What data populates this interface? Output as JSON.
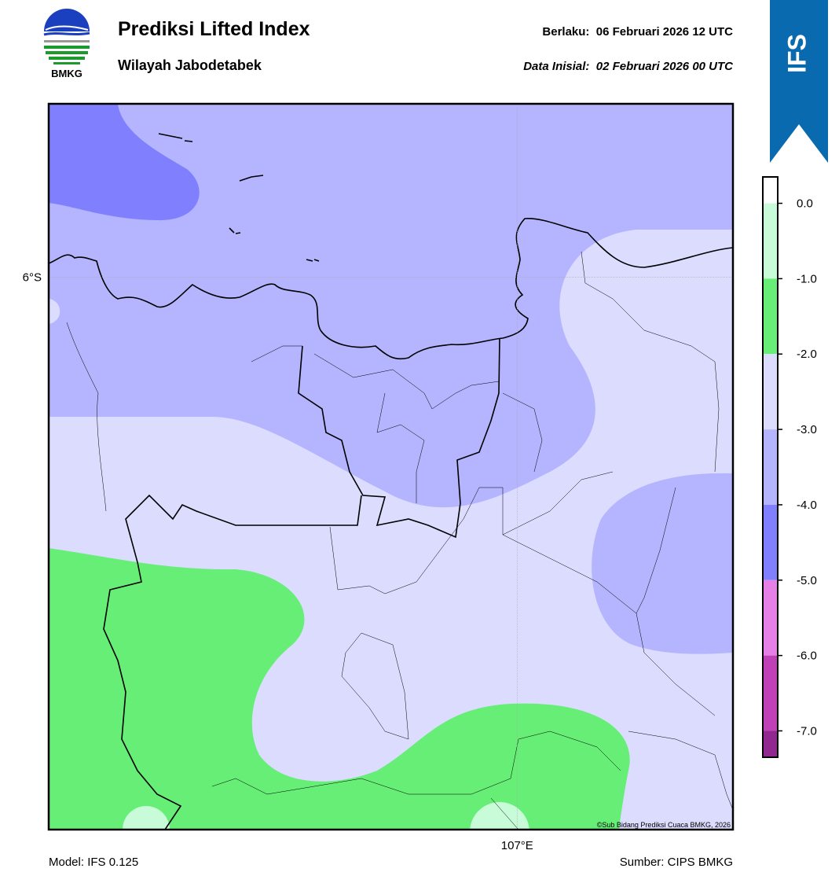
{
  "header": {
    "logo_text": "BMKG",
    "title": "Prediksi Lifted Index",
    "subtitle": "Wilayah Jabodetabek",
    "valid": "Berlaku:  06 Februari 2026 12 UTC",
    "init": "Data Inisial:  02 Februari 2026 00 UTC",
    "banner": "IFS"
  },
  "map": {
    "xlim": [
      106.11,
      107.41
    ],
    "ylim": [
      -7.05,
      -5.67
    ],
    "xticks": [
      {
        "value": 107,
        "label": "107°E"
      }
    ],
    "yticks": [
      {
        "value": -6,
        "label": "6°S"
      }
    ],
    "grid": true,
    "credit": "©Sub Bidang Prediksi Cuaca BMKG, 2026"
  },
  "colorbar": {
    "lim": [
      -7.35,
      0.35
    ],
    "ticks": [
      {
        "value": 0,
        "label": "0.0"
      },
      {
        "value": -1,
        "label": "-1.0"
      },
      {
        "value": -2,
        "label": "-2.0"
      },
      {
        "value": -3,
        "label": "-3.0"
      },
      {
        "value": -4,
        "label": "-4.0"
      },
      {
        "value": -5,
        "label": "-5.0"
      },
      {
        "value": -6,
        "label": "-6.0"
      },
      {
        "value": -7,
        "label": "-7.0"
      }
    ],
    "colors": [
      "#ffffff",
      "#c8fcd8",
      "#66ee77",
      "#dcdcff",
      "#b4b4ff",
      "#8080ff",
      "#e680e6",
      "#c040b8",
      "#902890"
    ]
  },
  "footer": {
    "model": "Model: IFS 0.125",
    "source": "Sumber: CIPS BMKG"
  }
}
